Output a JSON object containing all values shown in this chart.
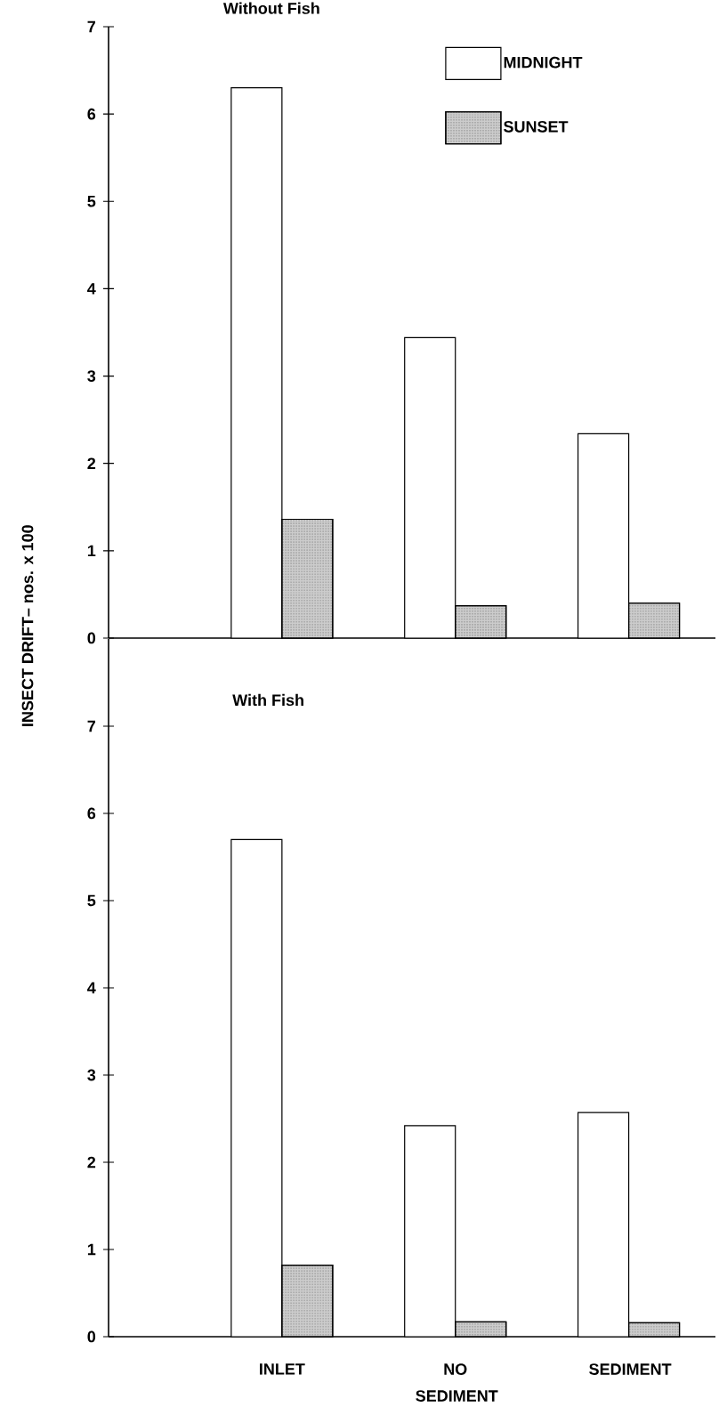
{
  "chart_data": [
    {
      "type": "bar",
      "title": "Without Fish",
      "ylabel": "INSECT DRIFT– nos. x 100",
      "categories": [
        null,
        null,
        null
      ],
      "series": [
        {
          "name": "MIDNIGHT",
          "color": "#ffffff",
          "values": [
            6.3,
            3.44,
            2.34
          ]
        },
        {
          "name": "SUNSET",
          "color": "#cccccc",
          "values": [
            1.36,
            0.37,
            0.4
          ]
        }
      ],
      "ylim": [
        0,
        7
      ],
      "yticks": [
        0,
        1,
        2,
        3,
        4,
        5,
        6,
        7
      ],
      "legend": "top right",
      "tick_labels": "y"
    },
    {
      "type": "bar",
      "title": "With Fish",
      "categories": [
        "INLET",
        "NO SEDIMENT",
        "SEDIMENT"
      ],
      "series": [
        {
          "color": "#ffffff",
          "values": [
            5.7,
            2.42,
            2.57
          ]
        },
        {
          "color": "#cccccc",
          "values": [
            0.82,
            0.17,
            0.16
          ]
        }
      ],
      "ylim": [
        0,
        8
      ],
      "yticks": [
        0,
        1,
        2,
        3,
        4,
        5,
        6,
        7
      ]
    }
  ]
}
